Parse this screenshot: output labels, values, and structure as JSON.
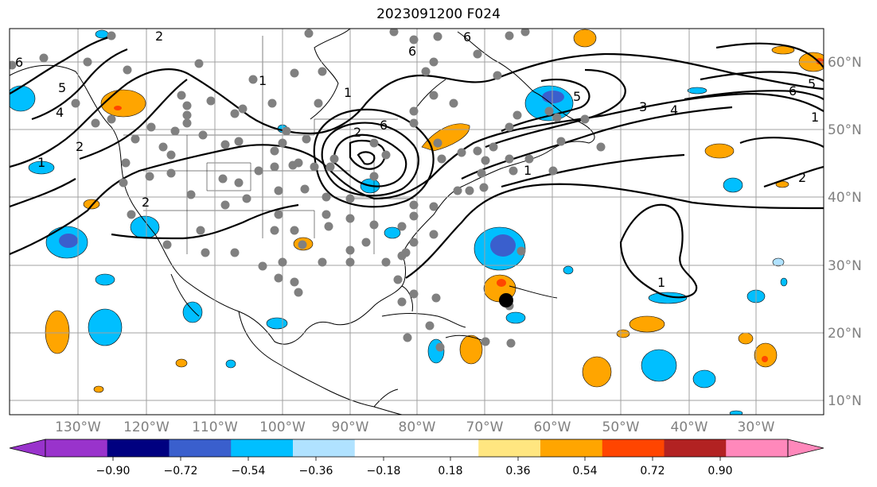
{
  "title": "2023091200 F024",
  "map": {
    "lon_labels": [
      "130°W",
      "120°W",
      "110°W",
      "100°W",
      "90°W",
      "80°W",
      "70°W",
      "60°W",
      "50°W",
      "40°W",
      "30°W"
    ],
    "lat_labels": [
      "60°N",
      "50°N",
      "40°N",
      "30°N",
      "20°N",
      "10°N"
    ],
    "contour_labels": [
      "6",
      "5",
      "4",
      "3",
      "2",
      "1"
    ]
  },
  "colorbar": {
    "ticks": [
      "−0.90",
      "−0.72",
      "−0.54",
      "−0.36",
      "−0.18",
      "0.18",
      "0.36",
      "0.54",
      "0.72",
      "0.90"
    ],
    "colors": [
      "#9933cc",
      "#000080",
      "#3a5fcd",
      "#00bfff",
      "#b0e2ff",
      "#ffffff",
      "#ffe680",
      "#ffa500",
      "#ff4500",
      "#b22222",
      "#ff88bb"
    ]
  },
  "colors": {
    "land_outline": "#000000",
    "grid": "#a0a0a0",
    "station_dot": "#808080",
    "storm_marker": "#000000"
  }
}
